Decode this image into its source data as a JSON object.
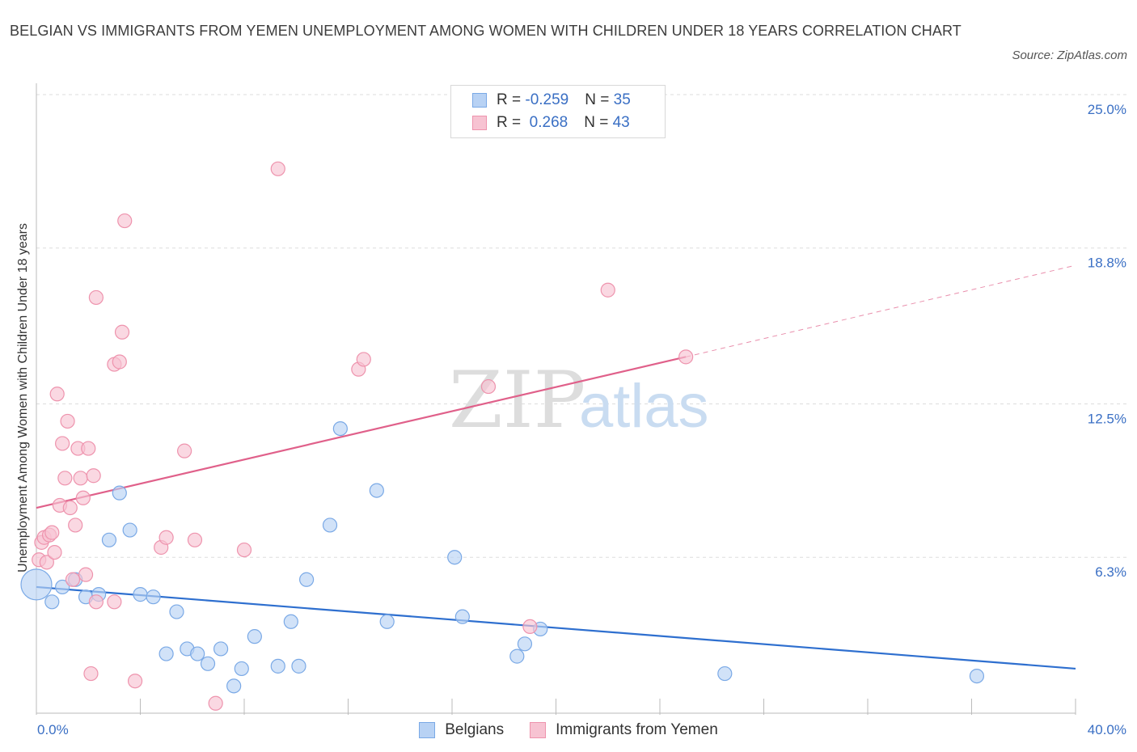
{
  "title": "BELGIAN VS IMMIGRANTS FROM YEMEN UNEMPLOYMENT AMONG WOMEN WITH CHILDREN UNDER 18 YEARS CORRELATION CHART",
  "source": "Source: ZipAtlas.com",
  "watermark": {
    "zip": "ZIP",
    "atlas": "atlas"
  },
  "legend": {
    "rows": [
      {
        "r_label": "R = ",
        "r_value": "-0.259",
        "n_label": "N = ",
        "n_value": "35"
      },
      {
        "r_label": "R = ",
        "r_value": " 0.268",
        "n_label": "N = ",
        "n_value": "43"
      }
    ]
  },
  "bottom_legend": {
    "series1": "Belgians",
    "series2": "Immigrants from Yemen"
  },
  "colors": {
    "belgians_fill": "#b8d2f4",
    "belgians_stroke": "#7aa9e6",
    "belgians_line": "#2e6fcf",
    "yemen_fill": "#f7c3d2",
    "yemen_stroke": "#ee93ad",
    "yemen_line": "#e0608a",
    "grid": "#dddddd",
    "tick_text": "#3a6fc4"
  },
  "chart_data": {
    "type": "scatter",
    "xlabel": "",
    "ylabel": "Unemployment Among Women with Children Under 18 years",
    "xlim": [
      0,
      40
    ],
    "ylim": [
      0,
      25
    ],
    "x_tick_labels": [
      "0.0%",
      "40.0%"
    ],
    "y_ticks": [
      {
        "value": 6.3,
        "label": "6.3%"
      },
      {
        "value": 12.5,
        "label": "12.5%"
      },
      {
        "value": 18.8,
        "label": "18.8%"
      },
      {
        "value": 25.0,
        "label": "25.0%"
      }
    ],
    "grid": true,
    "series": [
      {
        "name": "Belgians",
        "r": -0.259,
        "n": 35,
        "trend": {
          "x": [
            0,
            40
          ],
          "y": [
            5.1,
            1.8
          ],
          "dashed_from": null
        },
        "points": [
          {
            "x": 0.0,
            "y": 5.2,
            "size": "large"
          },
          {
            "x": 0.6,
            "y": 4.5
          },
          {
            "x": 1.0,
            "y": 5.1
          },
          {
            "x": 1.5,
            "y": 5.4
          },
          {
            "x": 1.9,
            "y": 4.7
          },
          {
            "x": 2.4,
            "y": 4.8
          },
          {
            "x": 2.8,
            "y": 7.0
          },
          {
            "x": 3.2,
            "y": 8.9
          },
          {
            "x": 3.6,
            "y": 7.4
          },
          {
            "x": 4.0,
            "y": 4.8
          },
          {
            "x": 4.5,
            "y": 4.7
          },
          {
            "x": 5.0,
            "y": 2.4
          },
          {
            "x": 5.4,
            "y": 4.1
          },
          {
            "x": 5.8,
            "y": 2.6
          },
          {
            "x": 6.2,
            "y": 2.4
          },
          {
            "x": 6.6,
            "y": 2.0
          },
          {
            "x": 7.1,
            "y": 2.6
          },
          {
            "x": 7.6,
            "y": 1.1
          },
          {
            "x": 7.9,
            "y": 1.8
          },
          {
            "x": 8.4,
            "y": 3.1
          },
          {
            "x": 9.3,
            "y": 1.9
          },
          {
            "x": 9.8,
            "y": 3.7
          },
          {
            "x": 10.1,
            "y": 1.9
          },
          {
            "x": 10.4,
            "y": 5.4
          },
          {
            "x": 11.3,
            "y": 7.6
          },
          {
            "x": 11.7,
            "y": 11.5
          },
          {
            "x": 13.1,
            "y": 9.0
          },
          {
            "x": 13.5,
            "y": 3.7
          },
          {
            "x": 16.1,
            "y": 6.3
          },
          {
            "x": 16.4,
            "y": 3.9
          },
          {
            "x": 18.5,
            "y": 2.3
          },
          {
            "x": 18.8,
            "y": 2.8
          },
          {
            "x": 19.4,
            "y": 3.4
          },
          {
            "x": 26.5,
            "y": 1.6
          },
          {
            "x": 36.2,
            "y": 1.5
          }
        ]
      },
      {
        "name": "Immigrants from Yemen",
        "r": 0.268,
        "n": 43,
        "trend": {
          "x": [
            0,
            25,
            40
          ],
          "y": [
            8.3,
            14.4,
            18.1
          ],
          "dashed_from": 25
        },
        "points": [
          {
            "x": 0.1,
            "y": 6.2
          },
          {
            "x": 0.2,
            "y": 6.9
          },
          {
            "x": 0.3,
            "y": 7.1
          },
          {
            "x": 0.4,
            "y": 6.1
          },
          {
            "x": 0.5,
            "y": 7.2
          },
          {
            "x": 0.6,
            "y": 7.3
          },
          {
            "x": 0.7,
            "y": 6.5
          },
          {
            "x": 0.8,
            "y": 12.9
          },
          {
            "x": 0.9,
            "y": 8.4
          },
          {
            "x": 1.0,
            "y": 10.9
          },
          {
            "x": 1.1,
            "y": 9.5
          },
          {
            "x": 1.2,
            "y": 11.8
          },
          {
            "x": 1.3,
            "y": 8.3
          },
          {
            "x": 1.4,
            "y": 5.4
          },
          {
            "x": 1.5,
            "y": 7.6
          },
          {
            "x": 1.6,
            "y": 10.7
          },
          {
            "x": 1.7,
            "y": 9.5
          },
          {
            "x": 1.8,
            "y": 8.7
          },
          {
            "x": 1.9,
            "y": 5.6
          },
          {
            "x": 2.0,
            "y": 10.7
          },
          {
            "x": 2.1,
            "y": 1.6
          },
          {
            "x": 2.2,
            "y": 9.6
          },
          {
            "x": 2.3,
            "y": 4.5
          },
          {
            "x": 2.3,
            "y": 16.8
          },
          {
            "x": 3.0,
            "y": 4.5
          },
          {
            "x": 3.0,
            "y": 14.1
          },
          {
            "x": 3.2,
            "y": 14.2
          },
          {
            "x": 3.3,
            "y": 15.4
          },
          {
            "x": 3.4,
            "y": 19.9
          },
          {
            "x": 3.8,
            "y": 1.3
          },
          {
            "x": 4.8,
            "y": 6.7
          },
          {
            "x": 5.0,
            "y": 7.1
          },
          {
            "x": 5.7,
            "y": 10.6
          },
          {
            "x": 6.1,
            "y": 7.0
          },
          {
            "x": 6.9,
            "y": 0.4
          },
          {
            "x": 8.0,
            "y": 6.6
          },
          {
            "x": 9.3,
            "y": 22.0
          },
          {
            "x": 12.4,
            "y": 13.9
          },
          {
            "x": 12.6,
            "y": 14.3
          },
          {
            "x": 17.4,
            "y": 13.2
          },
          {
            "x": 19.0,
            "y": 3.5
          },
          {
            "x": 22.0,
            "y": 17.1
          },
          {
            "x": 25.0,
            "y": 14.4
          }
        ]
      }
    ]
  }
}
